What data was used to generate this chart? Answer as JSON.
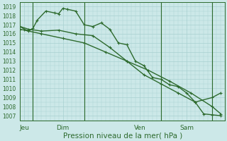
{
  "title": "Pression niveau de la mer( hPa )",
  "bg_color": "#cce8e8",
  "grid_color": "#a8d0d0",
  "line_color": "#2d6a2d",
  "ylim": [
    1006.5,
    1019.5
  ],
  "yticks": [
    1007,
    1008,
    1009,
    1010,
    1011,
    1012,
    1013,
    1014,
    1015,
    1016,
    1017,
    1018,
    1019
  ],
  "xlim": [
    0,
    96
  ],
  "day_ticks": [
    {
      "label": "Jeu",
      "x": 2
    },
    {
      "label": "Dim",
      "x": 20
    },
    {
      "label": "Ven",
      "x": 56
    },
    {
      "label": "Sam",
      "x": 78
    }
  ],
  "day_lines": [
    6,
    30,
    66,
    90
  ],
  "series": [
    {
      "x": [
        0,
        2,
        4,
        6,
        8,
        12,
        16,
        18,
        20,
        22,
        26,
        30,
        34,
        38,
        42,
        46,
        50,
        54,
        58,
        62,
        66,
        70,
        74,
        78,
        82,
        86,
        90,
        94
      ],
      "y": [
        1016.8,
        1016.5,
        1016.3,
        1016.6,
        1017.5,
        1018.5,
        1018.3,
        1018.2,
        1018.8,
        1018.7,
        1018.5,
        1017.0,
        1016.8,
        1017.2,
        1016.5,
        1015.0,
        1014.8,
        1013.0,
        1012.5,
        1011.2,
        1011.0,
        1010.4,
        1010.2,
        1009.5,
        1008.5,
        1007.2,
        1007.1,
        1007.0
      ],
      "marker": "+",
      "ms": 3,
      "lw": 1.0
    },
    {
      "x": [
        0,
        4,
        10,
        18,
        26,
        34,
        42,
        50,
        58,
        66,
        74,
        82,
        90,
        94
      ],
      "y": [
        1016.8,
        1016.5,
        1016.3,
        1016.4,
        1016.0,
        1015.8,
        1014.5,
        1013.0,
        1011.5,
        1010.5,
        1009.5,
        1008.5,
        1009.0,
        1009.5
      ],
      "marker": "+",
      "ms": 3,
      "lw": 1.0
    },
    {
      "x": [
        0,
        10,
        20,
        30,
        40,
        50,
        60,
        70,
        80,
        90,
        94
      ],
      "y": [
        1016.5,
        1016.0,
        1015.5,
        1015.0,
        1014.0,
        1013.0,
        1012.0,
        1010.8,
        1009.5,
        1008.0,
        1007.2
      ],
      "marker": "+",
      "ms": 3,
      "lw": 1.0
    }
  ],
  "xlabel_fontsize": 6.5,
  "ylabel_fontsize": 5.5,
  "title_fontsize": 7.5
}
